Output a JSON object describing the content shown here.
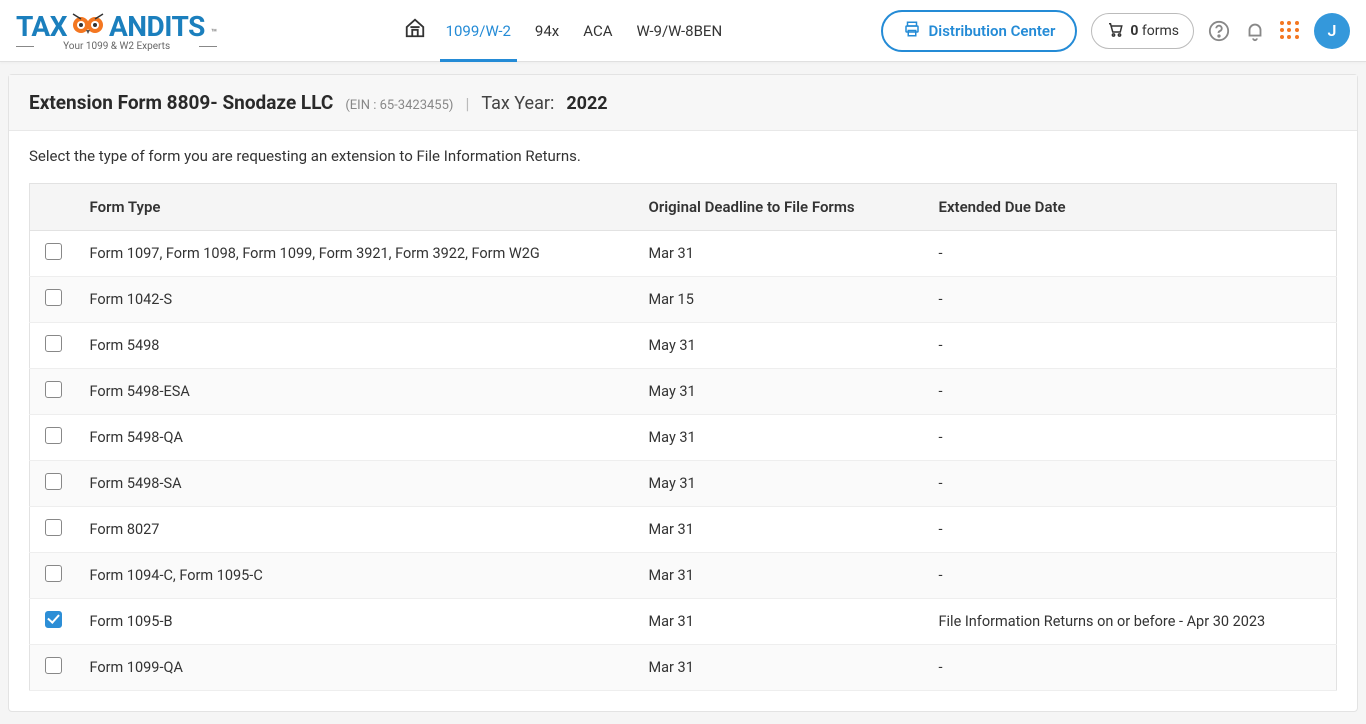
{
  "brand": {
    "tax": "TAX",
    "andits": "ANDITS",
    "tm": "™",
    "tagline": "Your 1099 & W2 Experts"
  },
  "nav": {
    "items": [
      {
        "label": "1099/W-2",
        "active": true,
        "icon": "home"
      },
      {
        "label": "94x"
      },
      {
        "label": "ACA"
      },
      {
        "label": "W-9/W-8BEN"
      }
    ]
  },
  "actions": {
    "dist_center": "Distribution Center",
    "cart_count": "0",
    "cart_suffix": "forms",
    "avatar": "J"
  },
  "header": {
    "title": "Extension Form 8809- Snodaze LLC",
    "ein": "(EIN : 65-3423455)",
    "tax_year_label": "Tax Year:",
    "tax_year_value": "2022"
  },
  "instruction": "Select the type of form you are requesting an extension to File Information Returns.",
  "table": {
    "columns": [
      "Form Type",
      "Original Deadline to File Forms",
      "Extended Due Date"
    ],
    "rows": [
      {
        "checked": false,
        "form": "Form 1097, Form 1098, Form 1099, Form 3921, Form 3922, Form W2G",
        "deadline": "Mar 31",
        "extended": "-"
      },
      {
        "checked": false,
        "form": "Form 1042-S",
        "deadline": "Mar 15",
        "extended": "-"
      },
      {
        "checked": false,
        "form": "Form 5498",
        "deadline": "May 31",
        "extended": "-"
      },
      {
        "checked": false,
        "form": "Form 5498-ESA",
        "deadline": "May 31",
        "extended": "-"
      },
      {
        "checked": false,
        "form": "Form 5498-QA",
        "deadline": "May 31",
        "extended": "-"
      },
      {
        "checked": false,
        "form": "Form 5498-SA",
        "deadline": "May 31",
        "extended": "-"
      },
      {
        "checked": false,
        "form": "Form 8027",
        "deadline": "Mar 31",
        "extended": "-"
      },
      {
        "checked": false,
        "form": "Form 1094-C, Form 1095-C",
        "deadline": "Mar 31",
        "extended": "-"
      },
      {
        "checked": true,
        "form": "Form 1095-B",
        "deadline": "Mar 31",
        "extended": "File Information Returns on or before - Apr 30 2023"
      },
      {
        "checked": false,
        "form": "Form 1099-QA",
        "deadline": "Mar 31",
        "extended": "-"
      }
    ]
  }
}
